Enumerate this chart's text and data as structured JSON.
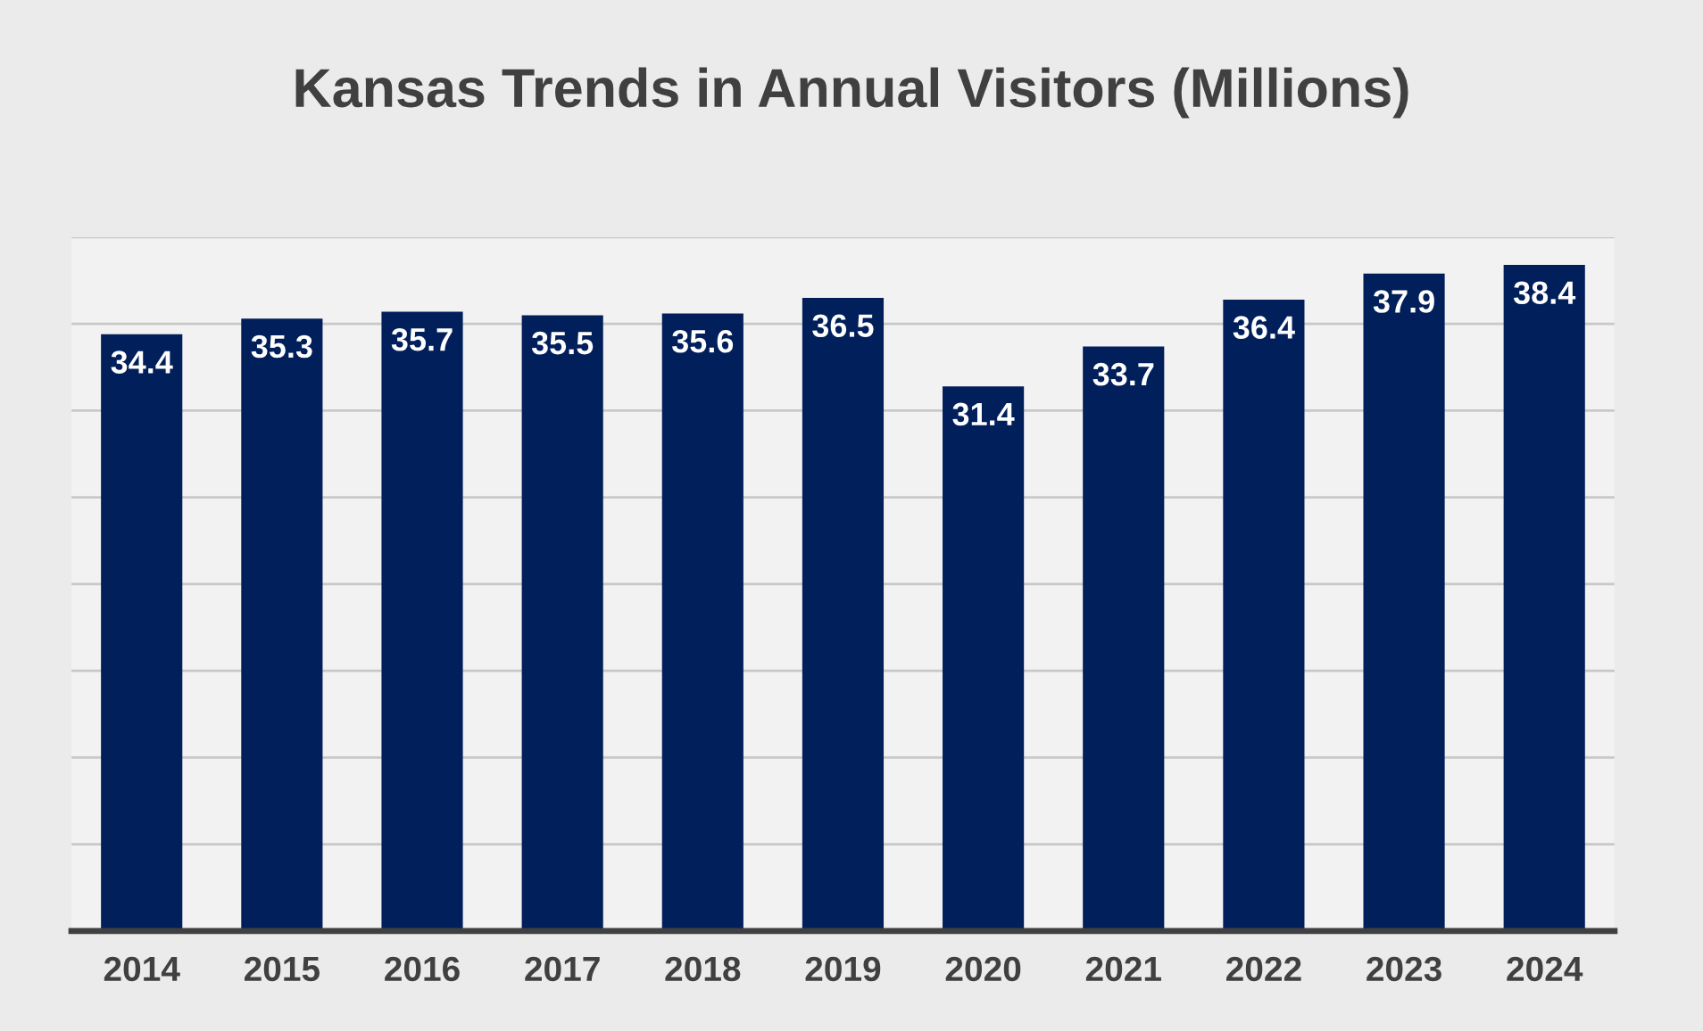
{
  "chart_data": {
    "type": "bar",
    "title": "Kansas Trends in Annual Visitors (Millions)",
    "categories": [
      "2014",
      "2015",
      "2016",
      "2017",
      "2018",
      "2019",
      "2020",
      "2021",
      "2022",
      "2023",
      "2024"
    ],
    "values": [
      34.4,
      35.3,
      35.7,
      35.5,
      35.6,
      36.5,
      31.4,
      33.7,
      36.4,
      37.9,
      38.4
    ],
    "color": "#011f5b",
    "data_labels": true,
    "ylim": [
      0,
      40
    ],
    "yticks": [
      {
        "value": 0,
        "label": null
      },
      {
        "value": 5,
        "label": null
      },
      {
        "value": 10,
        "label": null
      },
      {
        "value": 15,
        "label": null
      },
      {
        "value": 20,
        "label": null
      },
      {
        "value": 25,
        "label": null
      },
      {
        "value": 30,
        "label": null
      },
      {
        "value": 35,
        "label": null
      },
      {
        "value": 40,
        "label": null
      }
    ],
    "grid": "y",
    "tick_labels": "x"
  }
}
